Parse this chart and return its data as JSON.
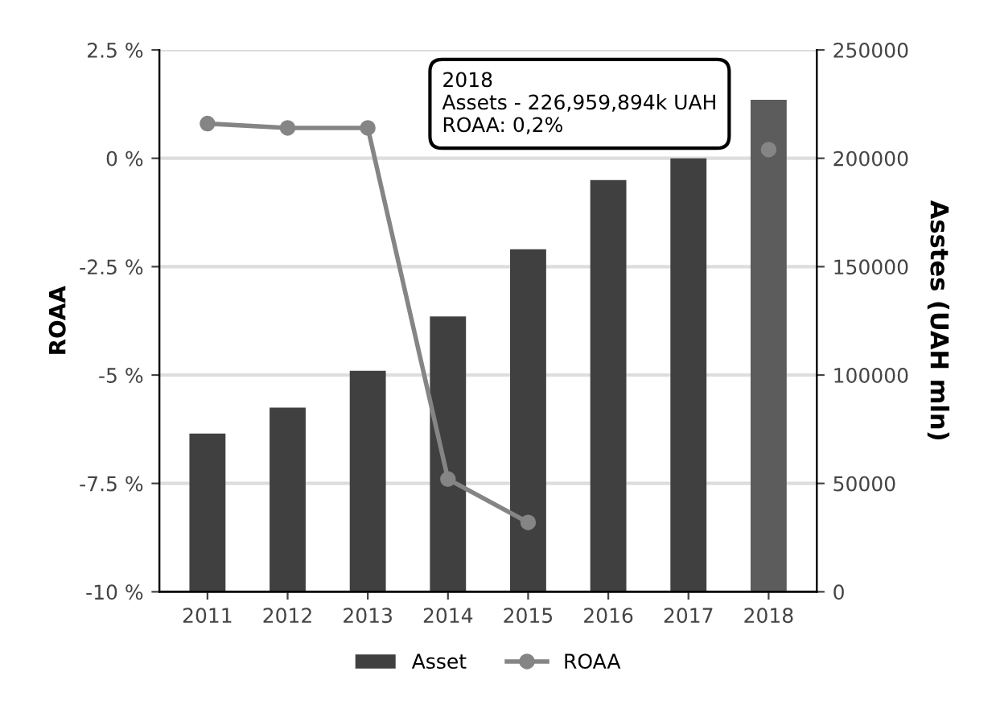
{
  "chart_data": {
    "type": "bar",
    "ylabel": "ROAA",
    "y2label": "Asstes (UAH mln)",
    "categories": [
      "2011",
      "2012",
      "2013",
      "2014",
      "2015",
      "2016",
      "2017",
      "2018"
    ],
    "series": [
      {
        "name": "Asset",
        "axis": "y2",
        "color": "#404040",
        "colors": [
          "#404040",
          "#404040",
          "#404040",
          "#404040",
          "#404040",
          "#404040",
          "#404040",
          "#5c5c5c"
        ],
        "values": [
          73000,
          85000,
          102000,
          127000,
          158000,
          190000,
          200000,
          227000
        ]
      },
      {
        "name": "ROAA",
        "type": "line",
        "axis": "y",
        "color": "#858585",
        "marker": "circle",
        "values": [
          0.8,
          0.7,
          0.7,
          -7.4,
          -8.4,
          null,
          null,
          0.2
        ]
      }
    ],
    "ylim": [
      -10,
      2.5
    ],
    "yticks": [
      {
        "value": -10,
        "label": "-10 %"
      },
      {
        "value": -7.5,
        "label": "-7.5 %"
      },
      {
        "value": -5,
        "label": "-5 %"
      },
      {
        "value": -2.5,
        "label": "-2.5 %"
      },
      {
        "value": 0,
        "label": "0 %"
      },
      {
        "value": 2.5,
        "label": "2.5 %"
      }
    ],
    "y2lim": [
      0,
      250000
    ],
    "y2ticks": [
      0,
      50000,
      100000,
      150000,
      200000,
      250000
    ],
    "grid": "y",
    "legend": "bottom",
    "annotations": [
      "2018\nAssets - 226,959,894k UAH\nROAA: 0,2%"
    ]
  }
}
